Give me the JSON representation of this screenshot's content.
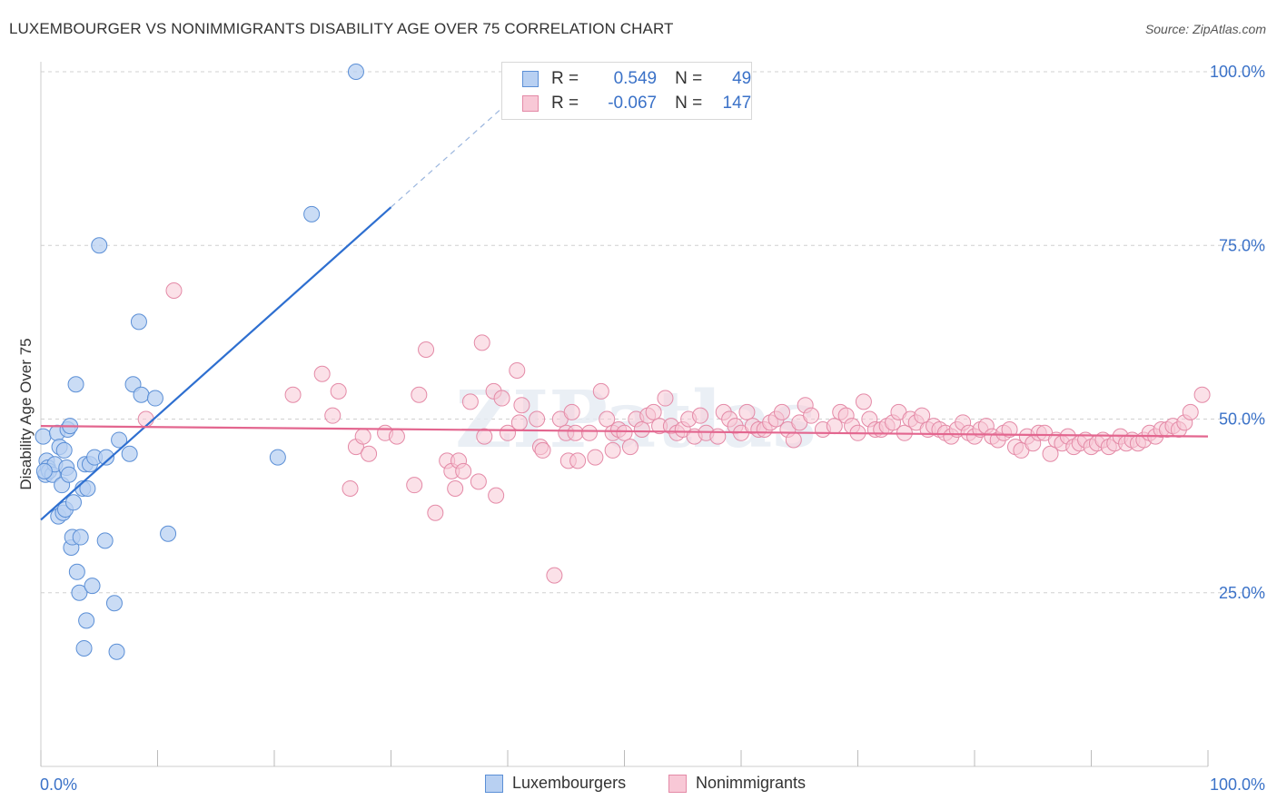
{
  "title": "LUXEMBOURGER VS NONIMMIGRANTS DISABILITY AGE OVER 75 CORRELATION CHART",
  "source": "Source: ZipAtlas.com",
  "watermark": "ZIPatlas",
  "legend": {
    "rows": [
      {
        "r_label": "R =",
        "r_value": "0.549",
        "n_label": "N =",
        "n_value": "49",
        "fill": "#b8d0f2",
        "stroke": "#5b8fd6"
      },
      {
        "r_label": "R =",
        "r_value": "-0.067",
        "n_label": "N =",
        "n_value": "147",
        "fill": "#f8c8d6",
        "stroke": "#e48aa7"
      }
    ]
  },
  "bottom_legend": [
    {
      "label": "Luxembourgers",
      "fill": "#b8d0f2",
      "stroke": "#5b8fd6"
    },
    {
      "label": "Nonimmigrants",
      "fill": "#f8c8d6",
      "stroke": "#e48aa7"
    }
  ],
  "colors": {
    "blue_fill": "#b8d0f2",
    "blue_stroke": "#5b8fd6",
    "blue_line": "#2e6fd0",
    "pink_fill": "#f8c8d6",
    "pink_stroke": "#e48aa7",
    "pink_line": "#e3668f",
    "axis_label": "#3b72c8",
    "grid": "#d0d0d0"
  },
  "chart_data": {
    "type": "scatter",
    "title": "LUXEMBOURGER VS NONIMMIGRANTS DISABILITY AGE OVER 75 CORRELATION CHART",
    "xlabel": "",
    "ylabel": "Disability Age Over 75",
    "xlim": [
      0,
      100
    ],
    "ylim": [
      0,
      104
    ],
    "x_tick_labels": [
      "0.0%",
      "100.0%"
    ],
    "y_tick_values": [
      25,
      50,
      75,
      100
    ],
    "y_tick_labels": [
      "25.0%",
      "50.0%",
      "75.0%",
      "100.0%"
    ],
    "grid": "horizontal dashed",
    "legend_position": "top-center",
    "series": [
      {
        "name": "Luxembourgers",
        "r": 0.549,
        "n": 49,
        "trend": {
          "x0": 0,
          "y0": 35.5,
          "x1": 30,
          "y1": 80.5,
          "dash_to_x": 40
        },
        "points": [
          [
            0.2,
            47.5
          ],
          [
            0.4,
            42
          ],
          [
            0.5,
            44
          ],
          [
            0.6,
            43
          ],
          [
            0.7,
            42.5
          ],
          [
            1,
            42
          ],
          [
            1.2,
            43.5
          ],
          [
            1.4,
            48
          ],
          [
            1.5,
            36
          ],
          [
            1.6,
            46
          ],
          [
            1.8,
            40.5
          ],
          [
            1.9,
            36.5
          ],
          [
            2,
            45.5
          ],
          [
            2.1,
            37
          ],
          [
            2.2,
            43
          ],
          [
            2.3,
            48.5
          ],
          [
            2.4,
            42
          ],
          [
            2.5,
            49
          ],
          [
            2.6,
            31.5
          ],
          [
            2.7,
            33
          ],
          [
            2.8,
            38
          ],
          [
            3,
            55
          ],
          [
            3.1,
            28
          ],
          [
            3.3,
            25
          ],
          [
            3.4,
            33
          ],
          [
            3.6,
            40
          ],
          [
            3.7,
            17
          ],
          [
            3.8,
            43.5
          ],
          [
            3.9,
            21
          ],
          [
            4,
            40
          ],
          [
            4.2,
            43.5
          ],
          [
            4.4,
            26
          ],
          [
            4.6,
            44.5
          ],
          [
            5,
            75
          ],
          [
            5.5,
            32.5
          ],
          [
            5.6,
            44.5
          ],
          [
            6.3,
            23.5
          ],
          [
            6.5,
            16.5
          ],
          [
            6.7,
            47
          ],
          [
            7.6,
            45
          ],
          [
            7.9,
            55
          ],
          [
            8.4,
            64
          ],
          [
            8.6,
            53.5
          ],
          [
            9.8,
            53
          ],
          [
            10.9,
            33.5
          ],
          [
            20.3,
            44.5
          ],
          [
            23.2,
            79.5
          ],
          [
            27,
            100
          ],
          [
            0.3,
            42.5
          ]
        ]
      },
      {
        "name": "Nonimmigrants",
        "r": -0.067,
        "n": 147,
        "trend": {
          "x0": 0,
          "y0": 49,
          "x1": 100,
          "y1": 47.5
        },
        "points": [
          [
            9,
            50
          ],
          [
            11.4,
            68.5
          ],
          [
            21.6,
            53.5
          ],
          [
            24.1,
            56.5
          ],
          [
            25,
            50.5
          ],
          [
            25.5,
            54
          ],
          [
            26.5,
            40
          ],
          [
            27,
            46
          ],
          [
            27.6,
            47.5
          ],
          [
            28.1,
            45
          ],
          [
            29.5,
            48
          ],
          [
            30.5,
            47.5
          ],
          [
            32,
            40.5
          ],
          [
            32.4,
            53.5
          ],
          [
            33,
            60
          ],
          [
            33.8,
            36.5
          ],
          [
            34.8,
            44
          ],
          [
            35.2,
            42.5
          ],
          [
            35.5,
            40
          ],
          [
            35.8,
            44
          ],
          [
            36.2,
            42.5
          ],
          [
            36.8,
            52.5
          ],
          [
            37.5,
            41
          ],
          [
            37.8,
            61
          ],
          [
            38,
            47.5
          ],
          [
            38.8,
            54
          ],
          [
            39,
            39
          ],
          [
            39.5,
            53
          ],
          [
            40,
            48
          ],
          [
            40.8,
            57
          ],
          [
            41,
            49.5
          ],
          [
            41.2,
            52
          ],
          [
            42.5,
            50
          ],
          [
            42.8,
            46
          ],
          [
            43,
            45.5
          ],
          [
            44,
            27.5
          ],
          [
            44.5,
            50
          ],
          [
            45,
            48
          ],
          [
            45.2,
            44
          ],
          [
            45.5,
            51
          ],
          [
            45.8,
            48
          ],
          [
            46,
            44
          ],
          [
            47,
            48
          ],
          [
            47.5,
            44.5
          ],
          [
            48,
            54
          ],
          [
            48.5,
            50
          ],
          [
            49,
            45.5
          ],
          [
            49,
            48
          ],
          [
            49.5,
            48.5
          ],
          [
            50,
            48
          ],
          [
            50.5,
            46
          ],
          [
            51,
            50
          ],
          [
            51.5,
            48.5
          ],
          [
            52,
            50.5
          ],
          [
            52.5,
            51
          ],
          [
            53,
            49
          ],
          [
            53.5,
            53
          ],
          [
            54,
            49
          ],
          [
            54.5,
            48
          ],
          [
            55,
            48.5
          ],
          [
            55.5,
            50
          ],
          [
            56,
            47.5
          ],
          [
            56.5,
            50.5
          ],
          [
            57,
            48
          ],
          [
            58,
            47.5
          ],
          [
            58.5,
            51
          ],
          [
            59,
            50
          ],
          [
            59.5,
            49
          ],
          [
            60,
            48
          ],
          [
            60.5,
            51
          ],
          [
            61,
            49
          ],
          [
            61.5,
            48.5
          ],
          [
            62,
            48.5
          ],
          [
            62.5,
            49.5
          ],
          [
            63,
            50
          ],
          [
            63.5,
            51
          ],
          [
            64,
            48.5
          ],
          [
            64.5,
            47
          ],
          [
            65,
            49.5
          ],
          [
            65.5,
            52
          ],
          [
            66,
            50.5
          ],
          [
            67,
            48.5
          ],
          [
            68,
            49
          ],
          [
            68.5,
            51
          ],
          [
            69,
            50.5
          ],
          [
            69.5,
            49
          ],
          [
            70,
            48
          ],
          [
            70.5,
            52.5
          ],
          [
            71,
            50
          ],
          [
            71.5,
            48.5
          ],
          [
            72,
            48.5
          ],
          [
            72.5,
            49
          ],
          [
            73,
            49.5
          ],
          [
            73.5,
            51
          ],
          [
            74,
            48
          ],
          [
            74.5,
            50
          ],
          [
            75,
            49.5
          ],
          [
            75.5,
            50.5
          ],
          [
            76,
            48.5
          ],
          [
            76.5,
            49
          ],
          [
            77,
            48.5
          ],
          [
            77.5,
            48
          ],
          [
            78,
            47.5
          ],
          [
            78.5,
            48.5
          ],
          [
            79,
            49.5
          ],
          [
            79.5,
            48
          ],
          [
            80,
            47.5
          ],
          [
            80.5,
            48.5
          ],
          [
            81,
            49
          ],
          [
            81.5,
            47.5
          ],
          [
            82,
            47
          ],
          [
            82.5,
            48
          ],
          [
            83,
            48.5
          ],
          [
            83.5,
            46
          ],
          [
            84,
            45.5
          ],
          [
            84.5,
            47.5
          ],
          [
            85,
            46.5
          ],
          [
            85.5,
            48
          ],
          [
            86,
            48
          ],
          [
            86.5,
            45
          ],
          [
            87,
            47
          ],
          [
            87.5,
            46.5
          ],
          [
            88,
            47.5
          ],
          [
            88.5,
            46
          ],
          [
            89,
            46.5
          ],
          [
            89.5,
            47
          ],
          [
            90,
            46
          ],
          [
            90.5,
            46.5
          ],
          [
            91,
            47
          ],
          [
            91.5,
            46
          ],
          [
            92,
            46.5
          ],
          [
            92.5,
            47.5
          ],
          [
            93,
            46.5
          ],
          [
            93.5,
            47
          ],
          [
            94,
            46.5
          ],
          [
            94.5,
            47
          ],
          [
            95,
            48
          ],
          [
            95.5,
            47.5
          ],
          [
            96,
            48.5
          ],
          [
            96.5,
            48.5
          ],
          [
            97,
            49
          ],
          [
            97.5,
            48.5
          ],
          [
            98,
            49.5
          ],
          [
            98.5,
            51
          ],
          [
            99.5,
            53.5
          ]
        ]
      }
    ]
  }
}
